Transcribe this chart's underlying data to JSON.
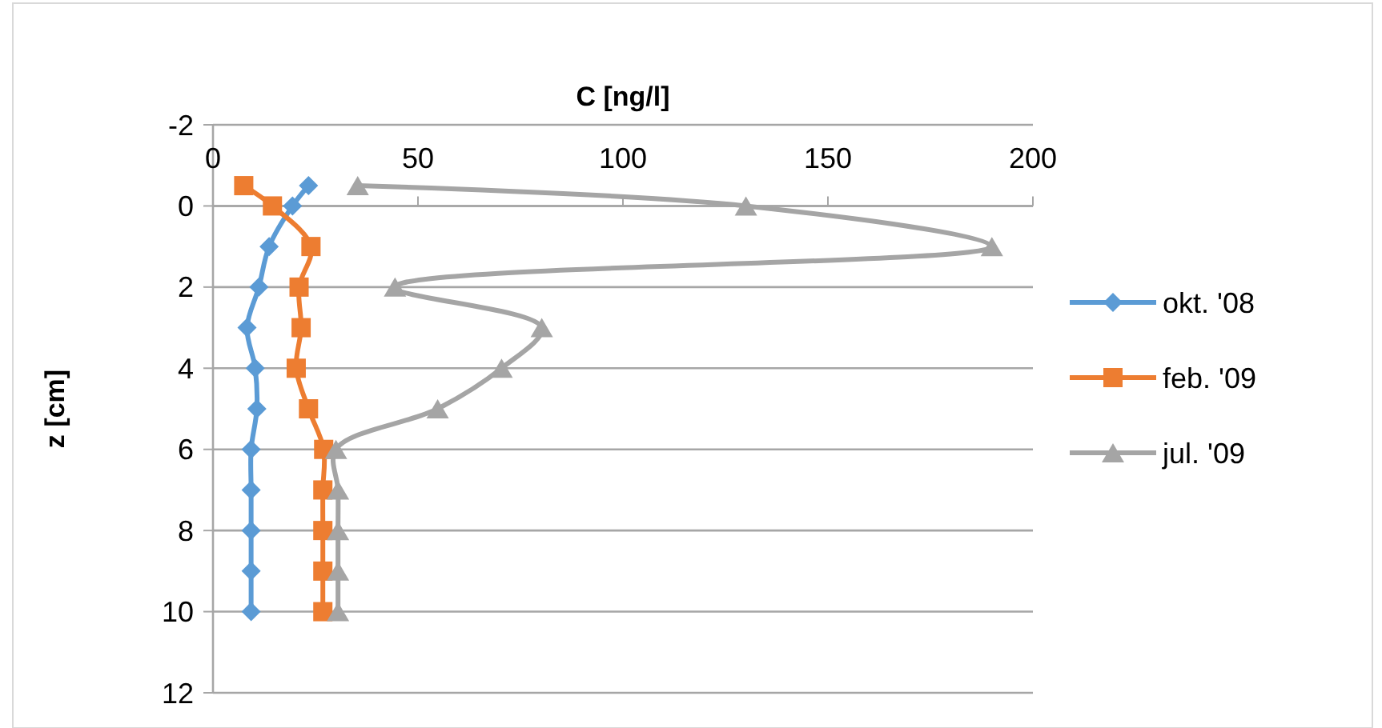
{
  "chart_data": {
    "type": "line",
    "xlabel": "C [ng/l]",
    "ylabel": "z [cm]",
    "xlim": [
      0,
      200
    ],
    "xticks": [
      0,
      50,
      100,
      150,
      200
    ],
    "ylim": [
      12,
      -2
    ],
    "yticks": [
      -2,
      0,
      2,
      4,
      6,
      8,
      10,
      12
    ],
    "grid": "y",
    "legend": "right",
    "line_style": "solid",
    "series": [
      {
        "name": "okt. '08",
        "color": "#5b9bd5",
        "marker": "diamond",
        "x": [
          23.3,
          19.4,
          13.7,
          11.2,
          8.3,
          10.3,
          10.7,
          9.3,
          9.3,
          9.3,
          9.3,
          9.3
        ],
        "values": [
          -0.5,
          0,
          1,
          2,
          3,
          4,
          5,
          6,
          7,
          8,
          9,
          10
        ]
      },
      {
        "name": "feb. '09",
        "color": "#ed7d31",
        "marker": "square",
        "x": [
          7.5,
          14.5,
          23.9,
          21,
          21.5,
          20.3,
          23.3,
          27,
          26.8,
          26.8,
          26.8,
          26.8
        ],
        "values": [
          -0.5,
          0,
          1,
          2,
          3,
          4,
          5,
          6,
          7,
          8,
          9,
          10
        ]
      },
      {
        "name": "jul. '09",
        "color": "#a5a5a5",
        "marker": "triangle",
        "x": [
          35.3,
          130,
          190,
          44.4,
          80.2,
          70.4,
          54.8,
          30,
          30.5,
          30.5,
          30.5,
          30.5
        ],
        "values": [
          -0.5,
          0,
          1,
          2,
          3,
          4,
          5,
          6,
          7,
          8,
          9,
          10
        ]
      }
    ]
  }
}
